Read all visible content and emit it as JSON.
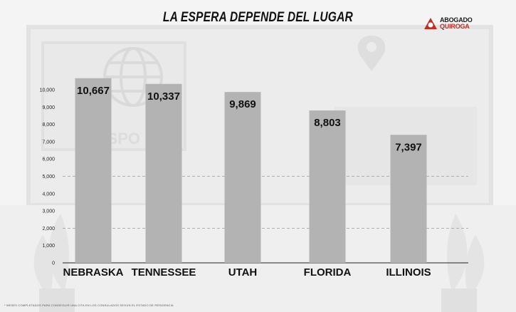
{
  "title": "LA ESPERA DEPENDE DEL LUGAR",
  "logo": {
    "line1": "ABOGADO",
    "line2": "QUIROGA",
    "icon": "lawyer-logo-icon"
  },
  "background": {
    "icons": [
      "globe-icon",
      "location-pin-icon",
      "plant-icon"
    ],
    "watermark_text": "ASSPO"
  },
  "footnote": "* MESES COMPLETADOS PARA CONSEGUIR UNA CITA EN LOS CONSULADOS SEGÚN EL ESTADO DE RESIDENCIA",
  "colors": {
    "bar": "#b3b3b3",
    "background": "#f4f4f4",
    "text": "#111111",
    "gridline": "#9a9a9a",
    "logo_red": "#c62b1f"
  },
  "chart_data": {
    "type": "bar",
    "categories": [
      "NEBRASKA",
      "TENNESSEE",
      "UTAH",
      "FLORIDA",
      "ILLINOIS"
    ],
    "values": [
      10667,
      10337,
      9869,
      8803,
      7397
    ],
    "value_labels": [
      "10,667",
      "10,337",
      "9,869",
      "8,803",
      "7,397"
    ],
    "yticks": [
      0,
      1000,
      2000,
      3000,
      4000,
      5000,
      6000,
      7000,
      8000,
      9000,
      10000
    ],
    "ytick_labels": [
      "0",
      "1,000",
      "2,000",
      "3,000",
      "4,000",
      "5,000",
      "6,000",
      "7,000",
      "8,000",
      "9,000",
      "10,000"
    ],
    "ylim": [
      0,
      11000
    ],
    "grid": "dashed lines at 2,000 and 5,000",
    "title": "LA ESPERA DEPENDE DEL LUGAR",
    "xlabel": "",
    "ylabel": ""
  }
}
